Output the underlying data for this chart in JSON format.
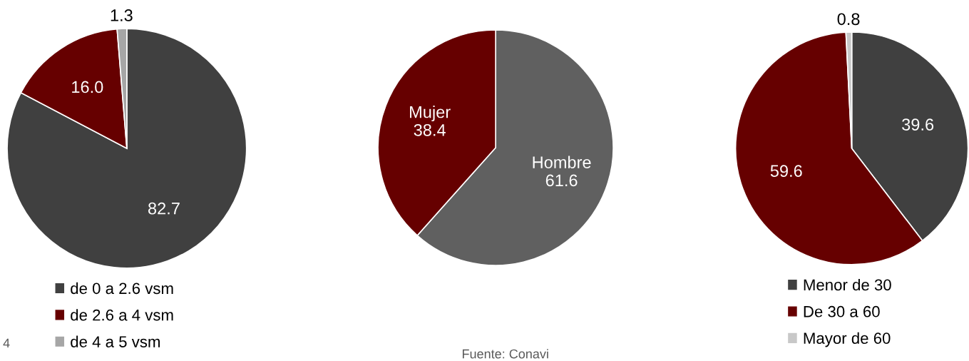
{
  "chart_data": [
    {
      "type": "pie",
      "categories": [
        "de 0 a 2.6 vsm",
        "de 2.6 a 4 vsm",
        "de 4 a 5 vsm"
      ],
      "values": [
        82.7,
        16.0,
        1.3
      ],
      "colors": [
        "#404040",
        "#660000",
        "#a6a6a6"
      ],
      "value_labels": [
        "82.7",
        "16.0",
        "1.3"
      ],
      "legend": "bottom",
      "annotations": [
        "4"
      ]
    },
    {
      "type": "pie",
      "categories": [
        "Hombre",
        "Mujer"
      ],
      "values": [
        61.6,
        38.4
      ],
      "colors": [
        "#606060",
        "#660000"
      ],
      "data_labels": true,
      "annotations": [
        "Fuente: Conavi"
      ]
    },
    {
      "type": "pie",
      "categories": [
        "Menor de 30",
        "De 30 a 60",
        "Mayor de 60"
      ],
      "values": [
        39.6,
        59.6,
        0.8
      ],
      "colors": [
        "#404040",
        "#660000",
        "#c8c8c8"
      ],
      "value_labels": [
        "39.6",
        "59.6",
        "0.8"
      ],
      "legend": "bottom"
    }
  ]
}
